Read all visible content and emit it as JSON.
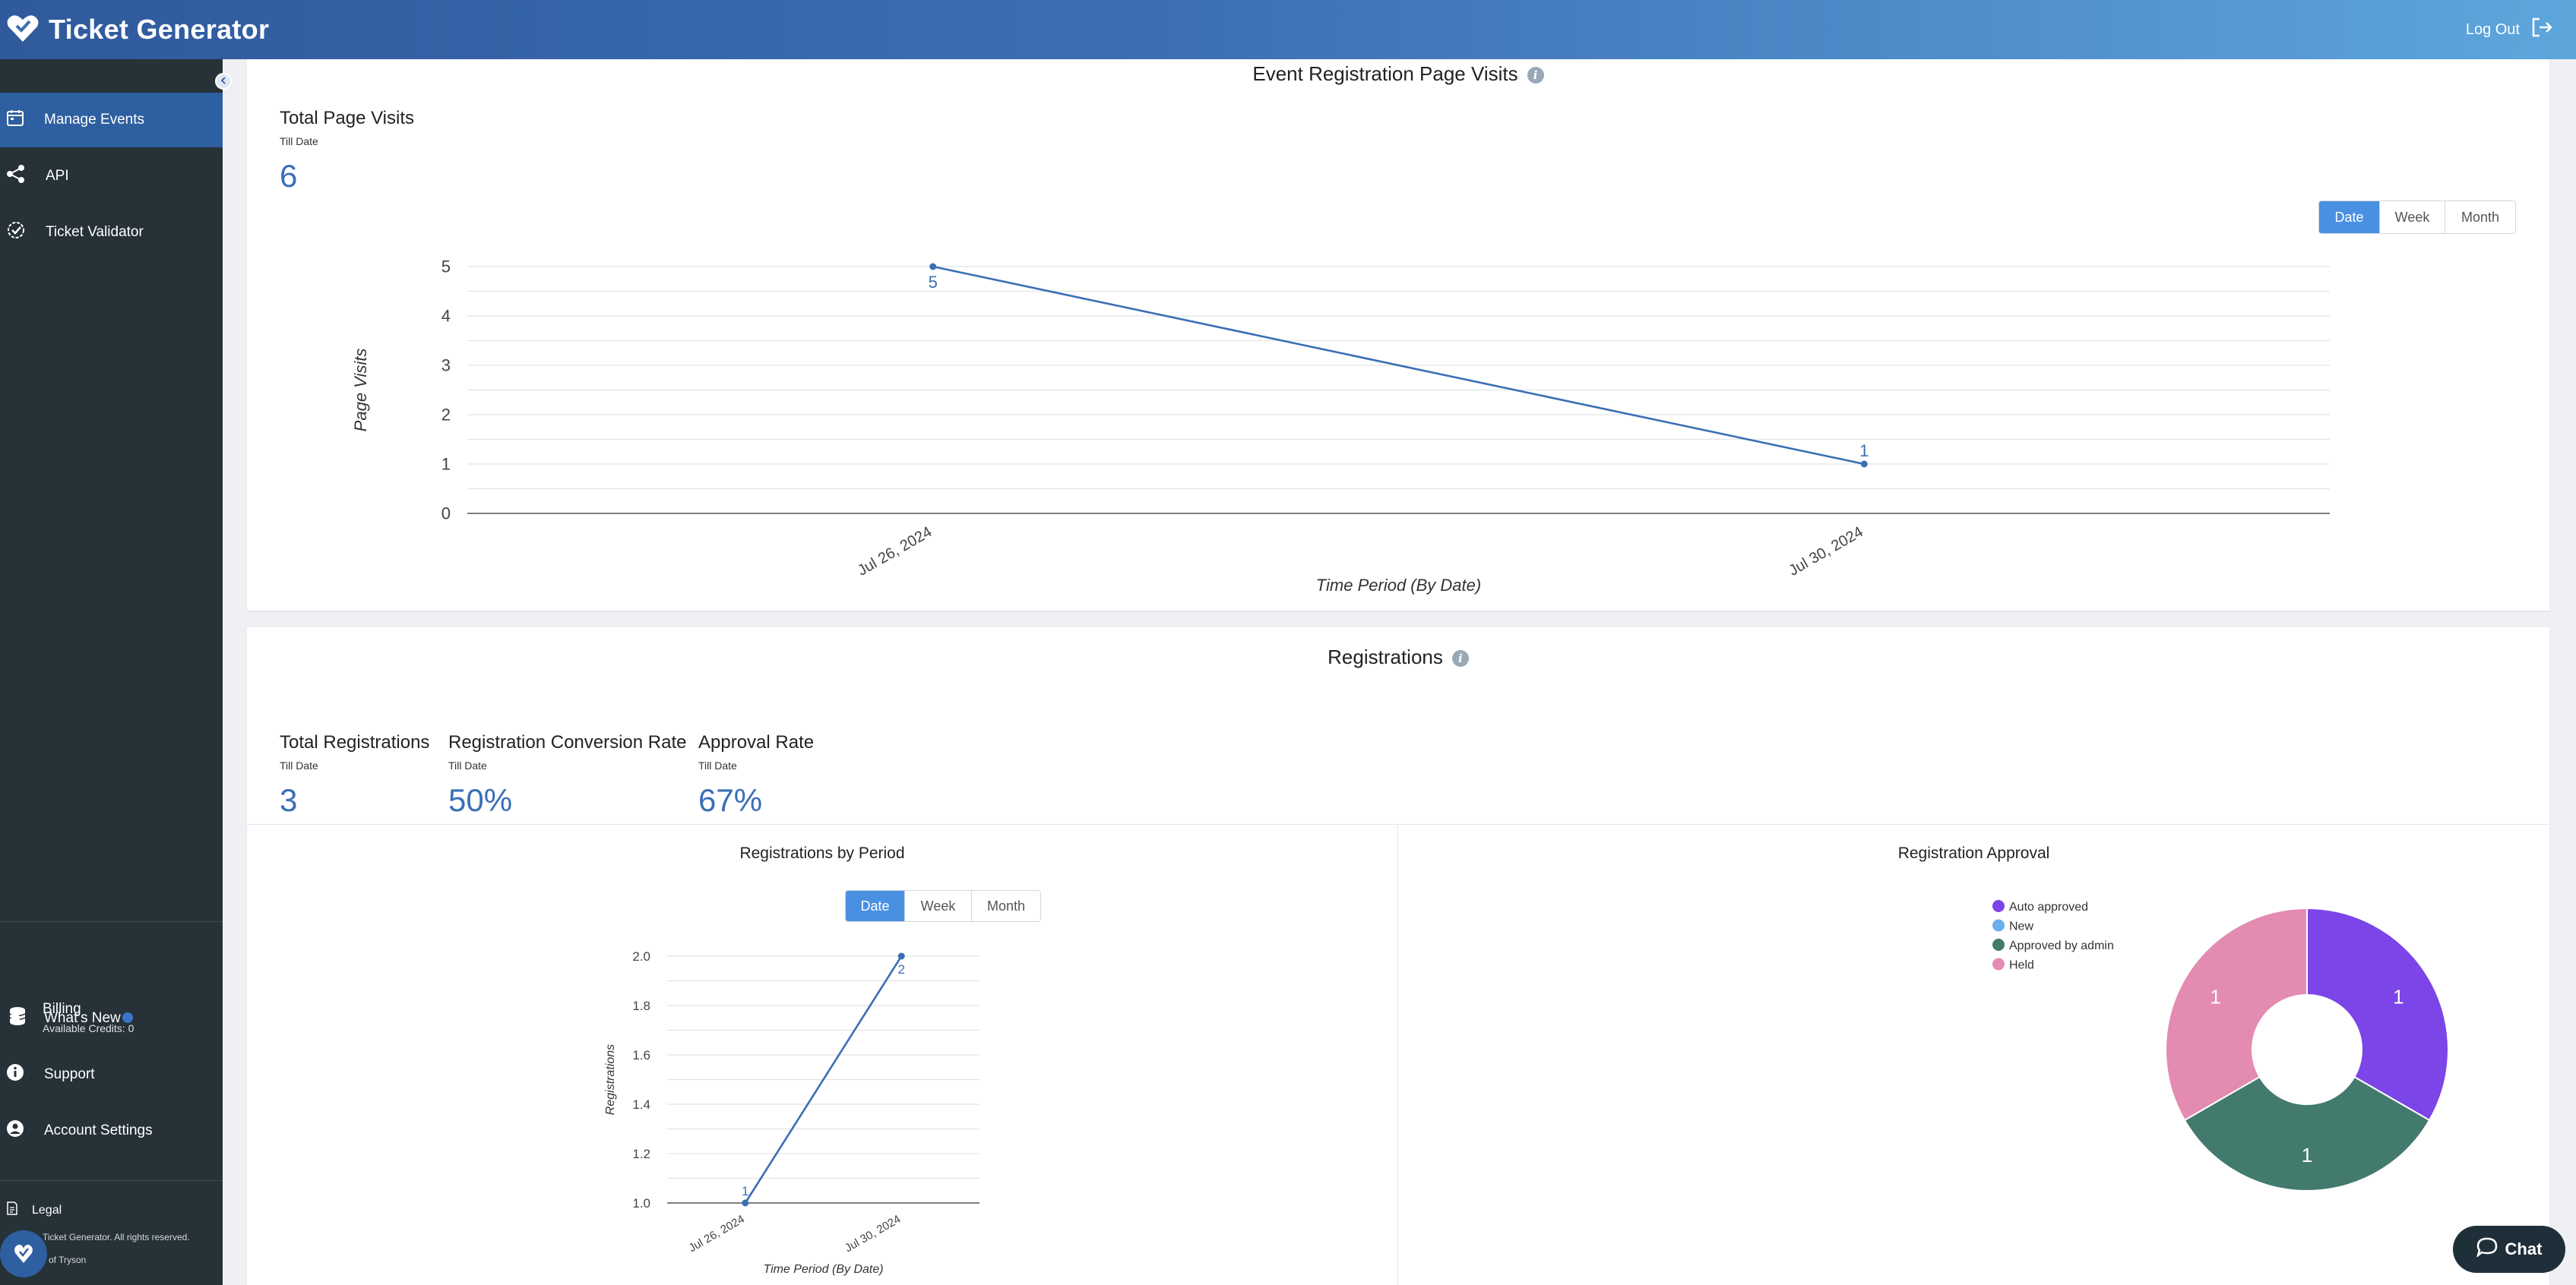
{
  "app": {
    "title": "Ticket Generator",
    "logout_label": "Log Out"
  },
  "sidebar": {
    "items": [
      {
        "label": "Manage Events",
        "icon": "calendar-icon",
        "active": true
      },
      {
        "label": "API",
        "icon": "share-icon"
      },
      {
        "label": "Ticket Validator",
        "icon": "badge-check-icon"
      }
    ],
    "billing": {
      "label": "Billing",
      "credits": "Available Credits: 0"
    },
    "bottom_items": [
      {
        "label": "What's New",
        "icon": "bell-icon"
      },
      {
        "label": "Support",
        "icon": "info-circle-icon"
      },
      {
        "label": "Account Settings",
        "icon": "account-icon"
      }
    ],
    "legal": "Legal",
    "footer_line1": "Ticket Generator. All rights reserved.",
    "footer_line2": "of Tryson"
  },
  "page_visits": {
    "title": "Event Registration Page Visits",
    "metric_title": "Total Page Visits",
    "metric_sub": "Till Date",
    "metric_value": "6",
    "toggle": [
      "Date",
      "Week",
      "Month"
    ],
    "toggle_selected": "Date"
  },
  "registrations": {
    "title": "Registrations",
    "metrics": [
      {
        "title": "Total Registrations",
        "sub": "Till Date",
        "value": "3"
      },
      {
        "title": "Registration Conversion Rate",
        "sub": "Till Date",
        "value": "50%"
      },
      {
        "title": "Approval Rate",
        "sub": "Till Date",
        "value": "67%"
      }
    ],
    "by_period_title": "Registrations by Period",
    "approval_title": "Registration Approval",
    "toggle": [
      "Date",
      "Week",
      "Month"
    ],
    "toggle_selected": "Date"
  },
  "chat": {
    "label": "Chat"
  },
  "colors": {
    "accent": "#3a6fb6",
    "sidebar": "#263138",
    "active": "#2e5fa0"
  },
  "chart_data": [
    {
      "type": "line",
      "x": [
        "Jul 26, 2024",
        "Jul 30, 2024"
      ],
      "series": [
        {
          "values": [
            5,
            1
          ]
        }
      ],
      "xlabel": "Time Period (By Date)",
      "ylabel": "Page Visits",
      "ylim": [
        0,
        5
      ],
      "yticks": [
        0,
        1,
        2,
        3,
        4,
        5
      ],
      "grid": true
    },
    {
      "type": "line",
      "x": [
        "Jul 26, 2024",
        "Jul 30, 2024"
      ],
      "series": [
        {
          "values": [
            1,
            2
          ]
        }
      ],
      "xlabel": "Time Period (By Date)",
      "ylabel": "Registrations",
      "ylim": [
        1.0,
        2.0
      ],
      "yticks": [
        "1.0",
        "1.2",
        "1.4",
        "1.6",
        "1.8",
        "2.0"
      ],
      "grid": true
    },
    {
      "type": "pie",
      "donut": true,
      "labels": [
        "Auto approved",
        "New",
        "Approved by admin",
        "Held"
      ],
      "values": [
        1,
        0,
        1,
        1
      ],
      "colors": [
        "#7b45e8",
        "#6aaeea",
        "#437a6e",
        "#e38bb0"
      ],
      "legend": "top-left"
    }
  ]
}
